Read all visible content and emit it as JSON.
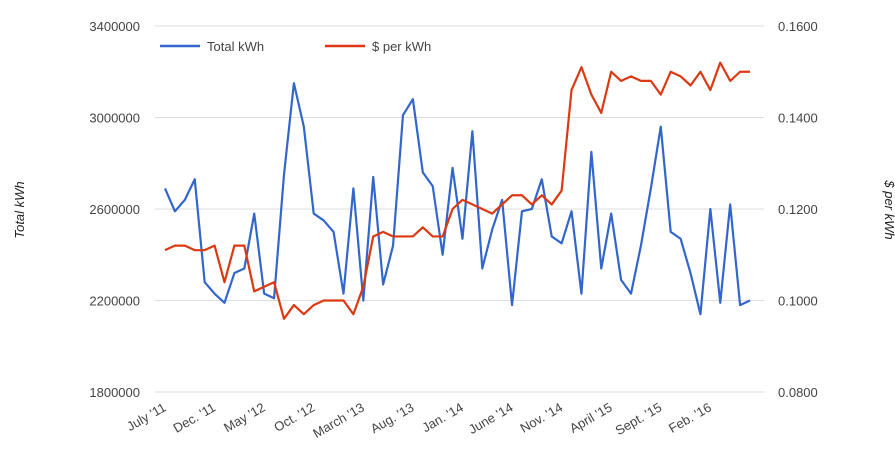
{
  "chart_data": {
    "type": "line",
    "y_label": "Total kWh",
    "y2_label": "$ per kWh",
    "categories": [
      "July '11",
      null,
      null,
      null,
      null,
      "Dec. '11",
      null,
      null,
      null,
      null,
      "May '12",
      null,
      null,
      null,
      null,
      "Oct. '12",
      null,
      null,
      null,
      null,
      "March '13",
      null,
      null,
      null,
      null,
      "Aug. '13",
      null,
      null,
      null,
      null,
      "Jan. '14",
      null,
      null,
      null,
      null,
      "June '14",
      null,
      null,
      null,
      null,
      "Nov. '14",
      null,
      null,
      null,
      null,
      "April '15",
      null,
      null,
      null,
      null,
      "Sept. '15",
      null,
      null,
      null,
      null,
      "Feb. '16",
      null,
      null,
      null,
      null
    ],
    "series": [
      {
        "name": "Total kWh",
        "color": "#3366cc",
        "values": [
          2690000,
          2590000,
          2640000,
          2730000,
          2280000,
          2230000,
          2190000,
          2320000,
          2340000,
          2580000,
          2230000,
          2210000,
          2750000,
          3150000,
          2960000,
          2580000,
          2550000,
          2500000,
          2230000,
          2690000,
          2200000,
          2740000,
          2270000,
          2440000,
          3010000,
          3080000,
          2760000,
          2700000,
          2400000,
          2780000,
          2470000,
          2940000,
          2340000,
          2510000,
          2640000,
          2180000,
          2590000,
          2600000,
          2730000,
          2480000,
          2450000,
          2590000,
          2230000,
          2850000,
          2340000,
          2580000,
          2290000,
          2230000,
          2440000,
          2690000,
          2960000,
          2500000,
          2470000,
          2320000,
          2140000,
          2600000,
          2190000,
          2620000,
          2180000,
          2200000
        ]
      },
      {
        "name": "$ per kWh",
        "color": "#dc3912",
        "axis": "y2",
        "values": [
          0.111,
          0.112,
          0.112,
          0.111,
          0.111,
          0.112,
          0.104,
          0.112,
          0.112,
          0.102,
          0.103,
          0.104,
          0.096,
          0.099,
          0.097,
          0.099,
          0.1,
          0.1,
          0.1,
          0.097,
          0.103,
          0.114,
          0.115,
          0.114,
          0.114,
          0.114,
          0.116,
          0.114,
          0.114,
          0.12,
          0.122,
          0.121,
          0.12,
          0.119,
          0.121,
          0.123,
          0.123,
          0.121,
          0.123,
          0.121,
          0.124,
          0.146,
          0.151,
          0.145,
          0.141,
          0.15,
          0.148,
          0.149,
          0.148,
          0.148,
          0.145,
          0.15,
          0.149,
          0.147,
          0.15,
          0.146,
          0.152,
          0.148,
          0.15,
          0.15
        ]
      }
    ],
    "ylim": [
      1800000,
      3400000
    ],
    "yticks": [
      1800000,
      2200000,
      2600000,
      3000000,
      3400000
    ],
    "y2lim": [
      0.08,
      0.16
    ],
    "y2ticks": [
      {
        "value": 0.08,
        "label": "0.0800"
      },
      {
        "value": 0.1,
        "label": "0.1000"
      },
      {
        "value": 0.12,
        "label": "0.1200"
      },
      {
        "value": 0.14,
        "label": "0.1400"
      },
      {
        "value": 0.16,
        "label": "0.1600"
      }
    ],
    "grid": true
  }
}
